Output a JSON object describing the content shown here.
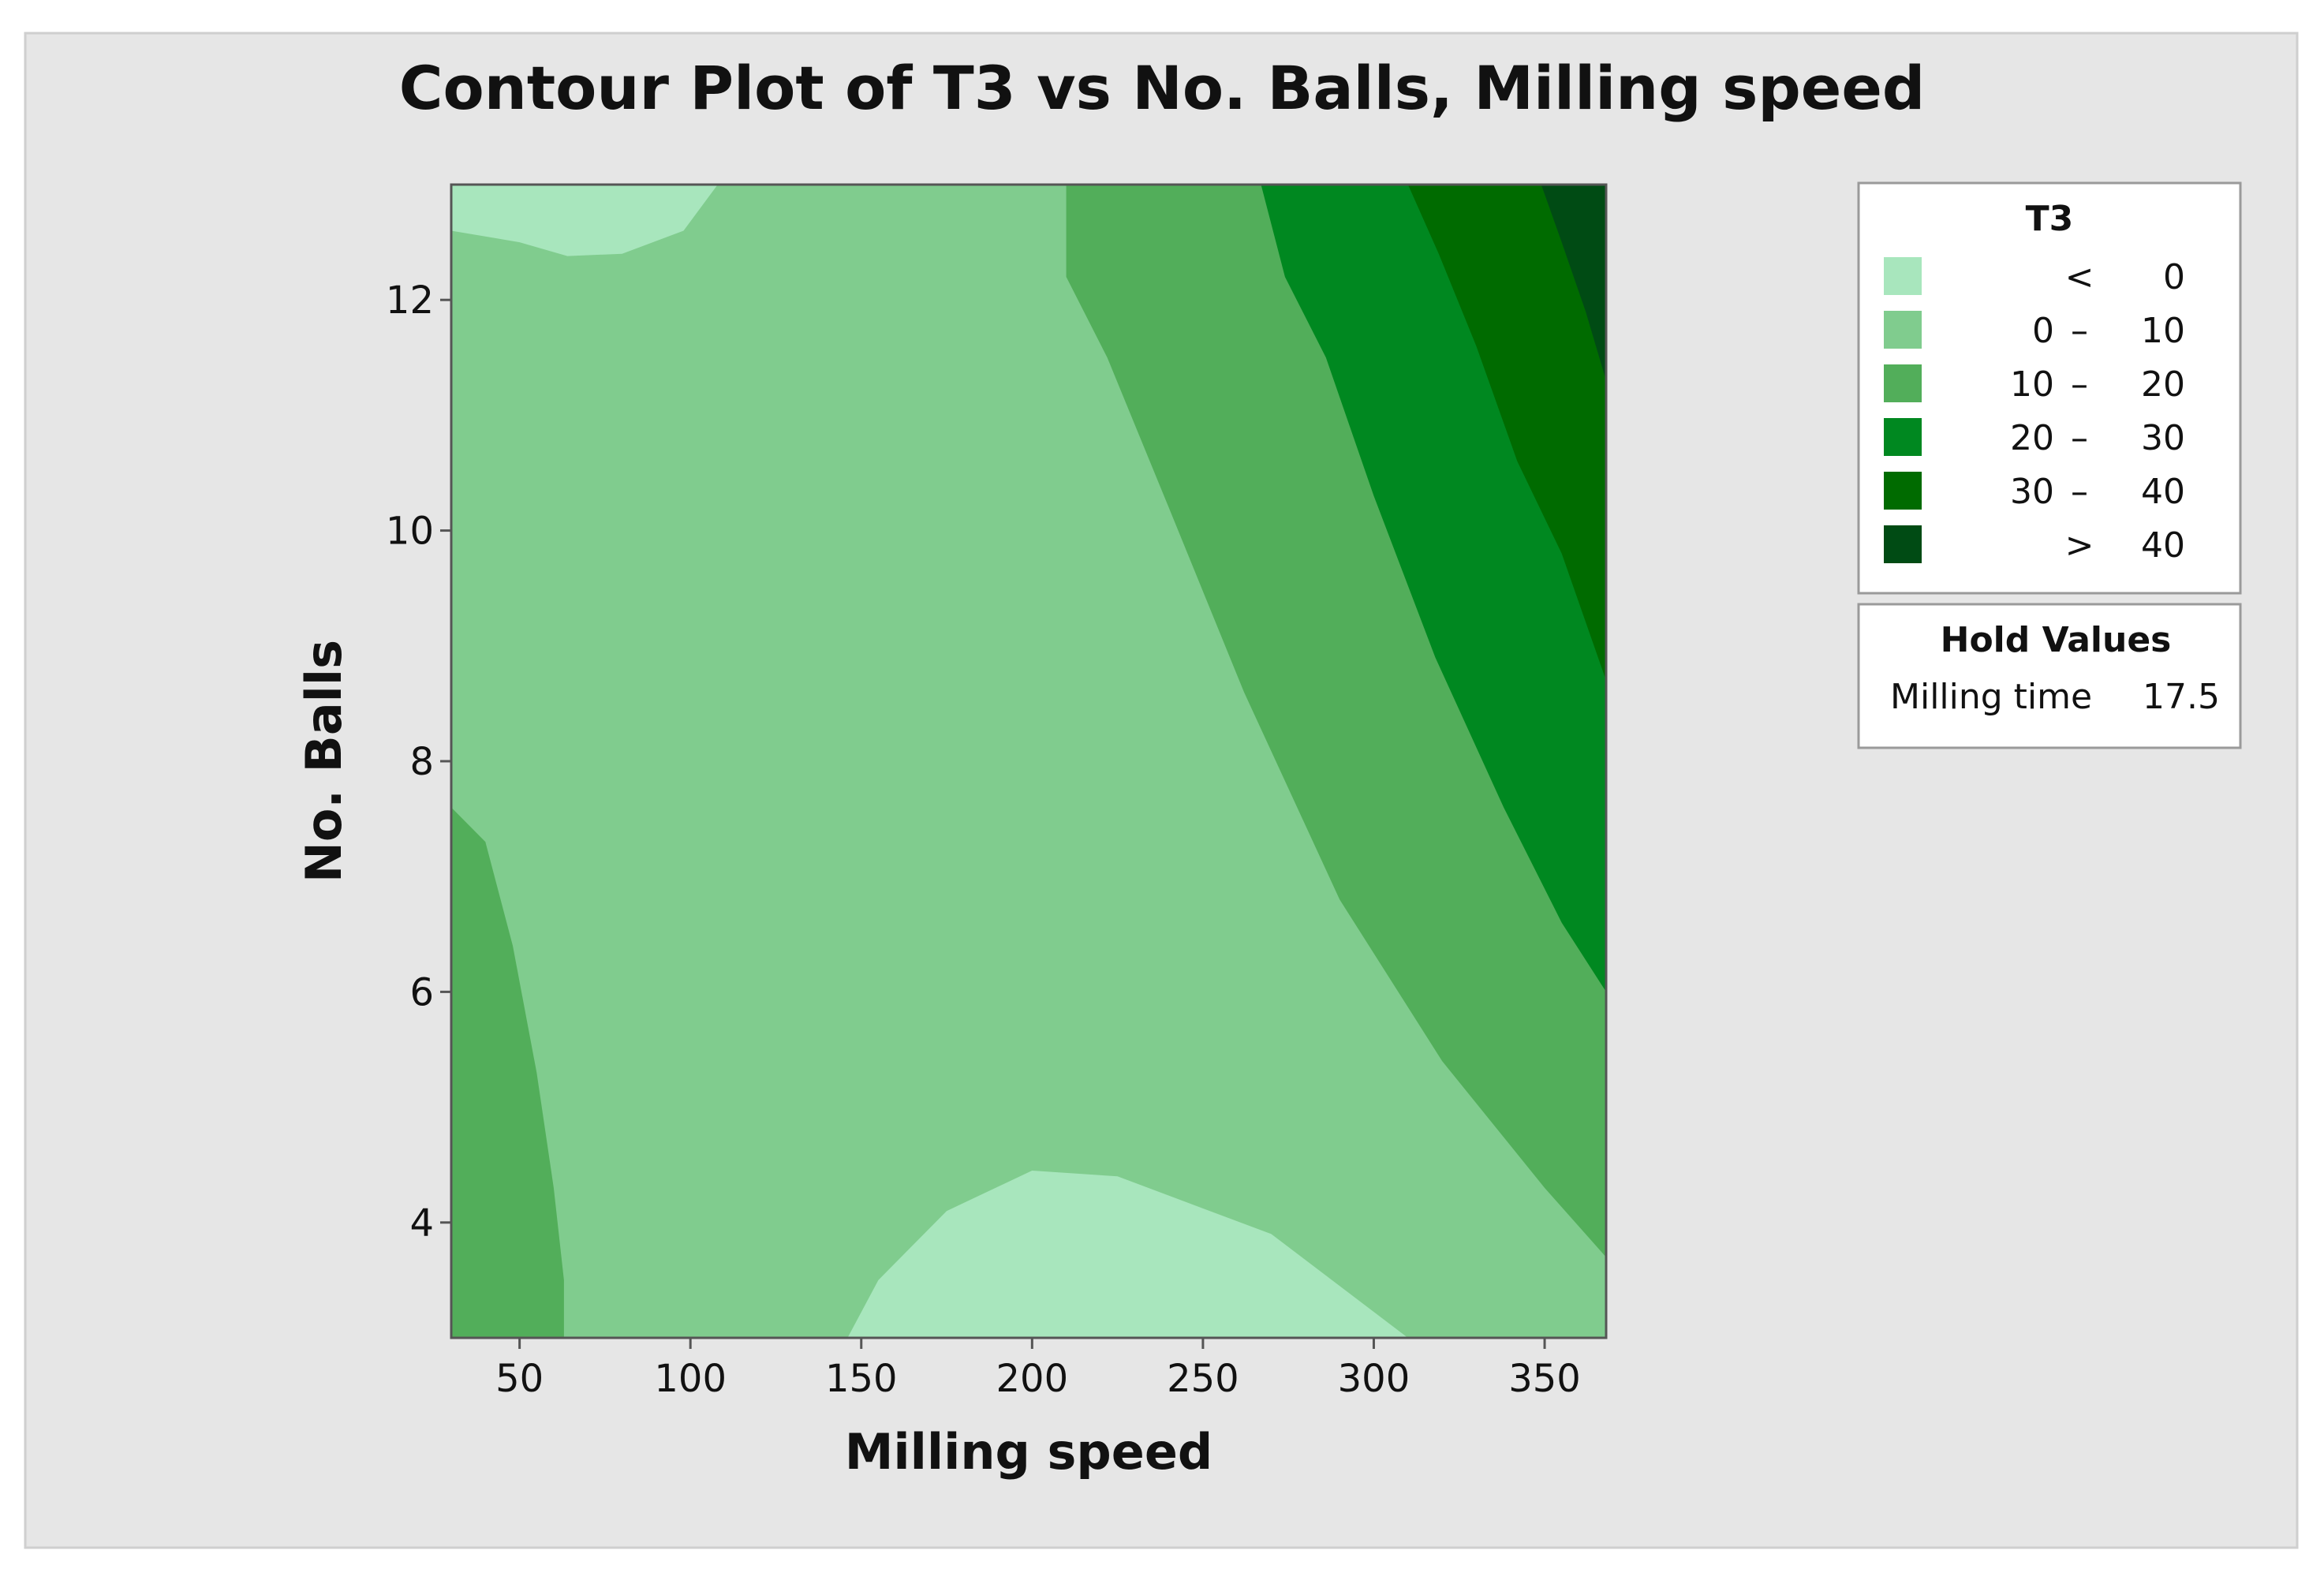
{
  "chart_data": {
    "type": "contour",
    "title": "Contour Plot of T3 vs No. Balls, Milling speed",
    "xlabel": "Milling speed",
    "ylabel": "No. Balls",
    "xlim": [
      30,
      368
    ],
    "ylim": [
      3,
      13
    ],
    "xticks": [
      50,
      100,
      150,
      200,
      250,
      300,
      350
    ],
    "yticks": [
      4,
      6,
      8,
      10,
      12
    ],
    "grid": false,
    "legend_position": "right",
    "legend": {
      "title": "T3",
      "levels": [
        {
          "op": "<",
          "lo": "",
          "hi": "0",
          "color": "#a8e6bd"
        },
        {
          "op": "–",
          "lo": "0",
          "hi": "10",
          "color": "#80cc8e"
        },
        {
          "op": "–",
          "lo": "10",
          "hi": "20",
          "color": "#52ae5a"
        },
        {
          "op": "–",
          "lo": "20",
          "hi": "30",
          "color": "#008820"
        },
        {
          "op": "–",
          "lo": "30",
          "hi": "40",
          "color": "#006b00"
        },
        {
          "op": ">",
          "lo": "",
          "hi": "40",
          "color": "#004b14"
        }
      ]
    },
    "hold_values": {
      "title": "Hold Values",
      "items": [
        {
          "name": "Milling time",
          "value": "17.5"
        }
      ]
    },
    "regions": [
      {
        "level": "0 – 10",
        "points": [
          [
            30,
            3
          ],
          [
            368,
            3
          ],
          [
            368,
            13
          ],
          [
            30,
            13
          ]
        ]
      },
      {
        "level": "< 0",
        "points": [
          [
            30,
            13
          ],
          [
            108,
            13
          ],
          [
            98,
            12.6
          ],
          [
            80,
            12.4
          ],
          [
            64,
            12.38
          ],
          [
            50,
            12.5
          ],
          [
            30,
            12.6
          ]
        ]
      },
      {
        "level": "< 0",
        "points": [
          [
            146,
            3
          ],
          [
            155,
            3.5
          ],
          [
            175,
            4.1
          ],
          [
            200,
            4.45
          ],
          [
            225,
            4.4
          ],
          [
            270,
            3.9
          ],
          [
            310,
            3.0
          ]
        ]
      },
      {
        "level": "10 – 20",
        "points": [
          [
            30,
            3
          ],
          [
            63,
            3
          ],
          [
            63,
            3.5
          ],
          [
            60,
            4.3
          ],
          [
            55,
            5.3
          ],
          [
            48,
            6.4
          ],
          [
            40,
            7.3
          ],
          [
            30,
            7.6
          ]
        ]
      },
      {
        "level": "10 – 20",
        "points": [
          [
            210,
            13
          ],
          [
            210,
            12.2
          ],
          [
            222,
            11.5
          ],
          [
            240,
            10.2
          ],
          [
            262,
            8.6
          ],
          [
            290,
            6.8
          ],
          [
            320,
            5.4
          ],
          [
            350,
            4.3
          ],
          [
            368,
            3.7
          ],
          [
            368,
            13
          ]
        ]
      },
      {
        "level": "20 – 30",
        "points": [
          [
            267,
            13
          ],
          [
            274,
            12.2
          ],
          [
            286,
            11.5
          ],
          [
            300,
            10.3
          ],
          [
            318,
            8.9
          ],
          [
            338,
            7.6
          ],
          [
            355,
            6.6
          ],
          [
            368,
            6.0
          ],
          [
            368,
            13
          ]
        ]
      },
      {
        "level": "30 – 40",
        "points": [
          [
            310,
            13
          ],
          [
            319,
            12.4
          ],
          [
            330,
            11.6
          ],
          [
            342,
            10.6
          ],
          [
            355,
            9.8
          ],
          [
            368,
            8.7
          ],
          [
            368,
            13
          ]
        ]
      },
      {
        "level": "> 40",
        "points": [
          [
            349,
            13
          ],
          [
            355,
            12.5
          ],
          [
            362,
            11.9
          ],
          [
            368,
            11.3
          ],
          [
            368,
            13
          ]
        ]
      }
    ]
  }
}
